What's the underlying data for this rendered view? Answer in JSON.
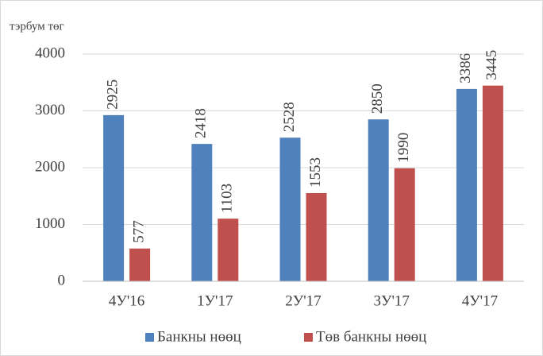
{
  "chart_data": {
    "type": "bar",
    "y_axis_label": "тэрбум төг",
    "categories": [
      "4У'16",
      "1У'17",
      "2У'17",
      "3У'17",
      "4У'17"
    ],
    "series": [
      {
        "name": "Банкны нөөц",
        "color": "#4f81bd",
        "values": [
          2925,
          2418,
          2528,
          2850,
          3386
        ]
      },
      {
        "name": "Төв банкны нөөц",
        "color": "#c0504d",
        "values": [
          577,
          1103,
          1553,
          1990,
          3445
        ]
      }
    ],
    "ylim": [
      0,
      4000
    ],
    "yticks": [
      0,
      1000,
      2000,
      3000,
      4000
    ],
    "grid": true,
    "legend": "bottom"
  }
}
